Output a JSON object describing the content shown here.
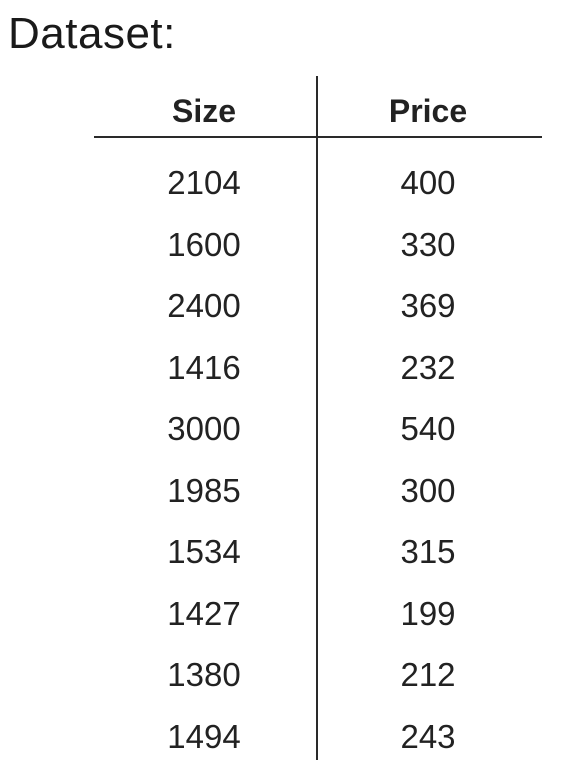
{
  "title": "Dataset:",
  "table": {
    "columns": [
      "Size",
      "Price"
    ],
    "rows": [
      [
        "2104",
        "400"
      ],
      [
        "1600",
        "330"
      ],
      [
        "2400",
        "369"
      ],
      [
        "1416",
        "232"
      ],
      [
        "3000",
        "540"
      ],
      [
        "1985",
        "300"
      ],
      [
        "1534",
        "315"
      ],
      [
        "1427",
        "199"
      ],
      [
        "1380",
        "212"
      ],
      [
        "1494",
        "243"
      ]
    ]
  }
}
